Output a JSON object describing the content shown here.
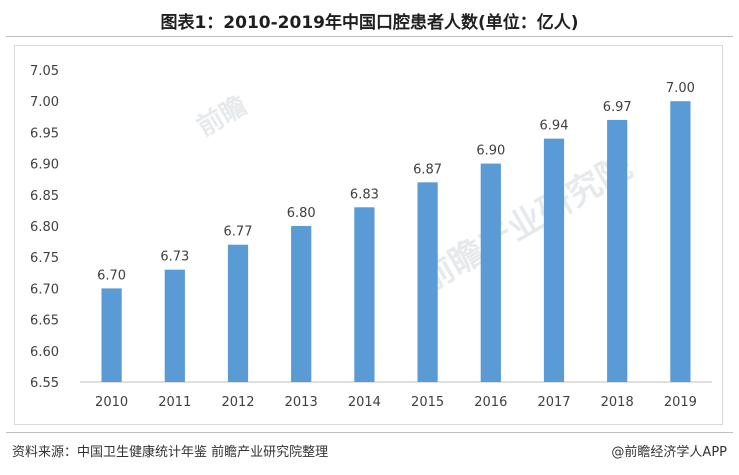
{
  "chart_data": {
    "type": "bar",
    "title": "图表1：2010-2019年中国口腔患者人数(单位：亿人)",
    "categories": [
      "2010",
      "2011",
      "2012",
      "2013",
      "2014",
      "2015",
      "2016",
      "2017",
      "2018",
      "2019"
    ],
    "values": [
      6.7,
      6.73,
      6.77,
      6.8,
      6.83,
      6.87,
      6.9,
      6.94,
      6.97,
      7.0
    ],
    "data_labels": [
      "6.70",
      "6.73",
      "6.77",
      "6.80",
      "6.83",
      "6.87",
      "6.90",
      "6.94",
      "6.97",
      "7.00"
    ],
    "y_ticks": [
      "6.55",
      "6.60",
      "6.65",
      "6.70",
      "6.75",
      "6.80",
      "6.85",
      "6.90",
      "6.95",
      "7.00",
      "7.05"
    ],
    "ylim": [
      6.55,
      7.05
    ],
    "xlabel": "",
    "ylabel": "",
    "grid": false,
    "bar_color": "#5b9bd5"
  },
  "footer": {
    "source": "资料来源：中国卫生健康统计年鉴 前瞻产业研究院整理",
    "brand": "@前瞻经济学人APP"
  },
  "watermarks": [
    "前瞻",
    "前瞻产业研究院"
  ]
}
